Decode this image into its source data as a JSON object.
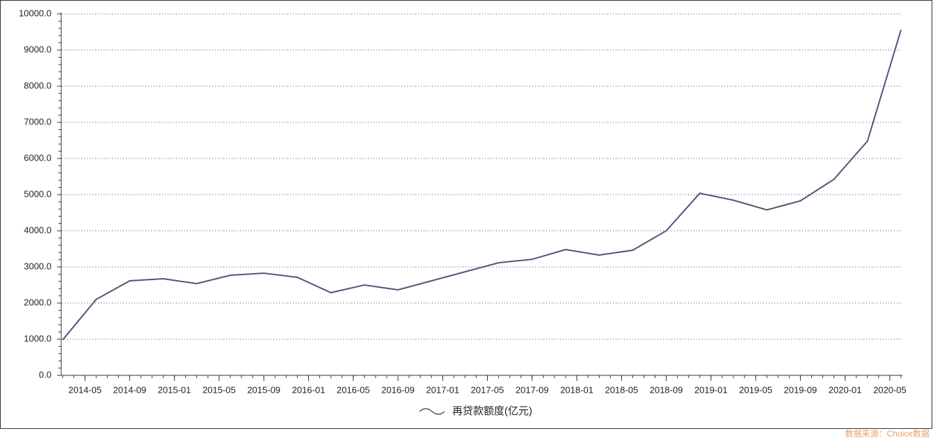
{
  "chart_data": {
    "type": "line",
    "x": [
      "2014-03",
      "2014-06",
      "2014-09",
      "2014-12",
      "2015-03",
      "2015-06",
      "2015-09",
      "2015-12",
      "2016-03",
      "2016-06",
      "2016-09",
      "2016-12",
      "2017-03",
      "2017-06",
      "2017-09",
      "2017-12",
      "2018-03",
      "2018-06",
      "2018-09",
      "2018-12",
      "2019-03",
      "2019-06",
      "2019-09",
      "2019-12",
      "2020-03",
      "2020-06"
    ],
    "series": [
      {
        "name": "再贷款额度(亿元)",
        "color": "#5e4d75",
        "values": [
          980,
          2100,
          2615,
          2673,
          2538,
          2769,
          2827,
          2712,
          2288,
          2500,
          2365,
          2615,
          2865,
          3115,
          3211,
          3481,
          3327,
          3462,
          4000,
          5038,
          4846,
          4577,
          4827,
          5423,
          6481,
          9558
        ]
      }
    ],
    "xlim": [
      "2014-03",
      "2020-06"
    ],
    "xticks": [
      "2014-05",
      "2014-09",
      "2015-01",
      "2015-05",
      "2015-09",
      "2016-01",
      "2016-05",
      "2016-09",
      "2017-01",
      "2017-05",
      "2017-09",
      "2018-01",
      "2018-05",
      "2018-09",
      "2019-01",
      "2019-05",
      "2019-09",
      "2020-01",
      "2020-05"
    ],
    "ylim": [
      0,
      10000
    ],
    "yticks": [
      {
        "value": 0,
        "label": "0.0"
      },
      {
        "value": 1000,
        "label": "1000.0"
      },
      {
        "value": 2000,
        "label": "2000.0"
      },
      {
        "value": 3000,
        "label": "3000.0"
      },
      {
        "value": 4000,
        "label": "4000.0"
      },
      {
        "value": 5000,
        "label": "5000.0"
      },
      {
        "value": 6000,
        "label": "6000.0"
      },
      {
        "value": 7000,
        "label": "7000.0"
      },
      {
        "value": 8000,
        "label": "8000.0"
      },
      {
        "value": 9000,
        "label": "9000.0"
      },
      {
        "value": 10000,
        "label": "10000.0"
      }
    ],
    "grid": true,
    "legend": "bottom",
    "source": "数据来源：Choice数据"
  }
}
